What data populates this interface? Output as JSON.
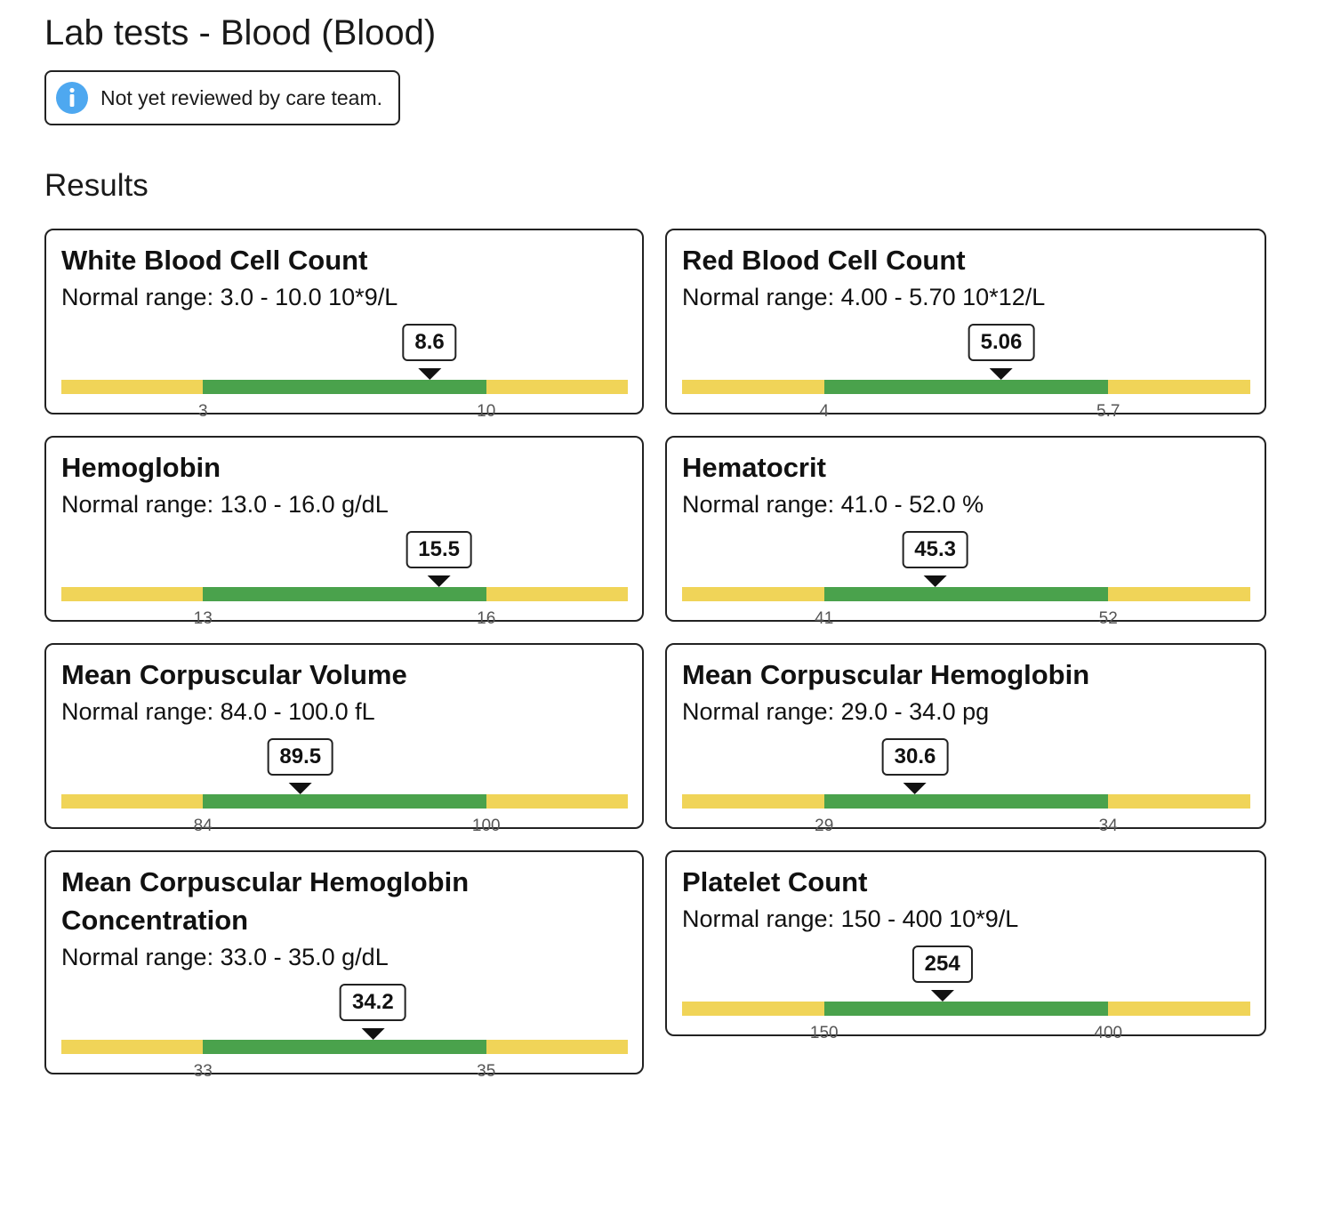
{
  "page": {
    "title": "Lab tests - Blood (Blood)",
    "notice": {
      "icon": "info-icon",
      "text": "Not yet reviewed by care team.",
      "icon_color": "#4ea8f0"
    },
    "section_title": "Results"
  },
  "colors": {
    "normal": "#4aa24c",
    "out_of_range": "#f0d458"
  },
  "results": [
    {
      "name": "White Blood Cell Count",
      "range_text": "Normal range: 3.0 - 10.0 10*9/L",
      "value": 8.6,
      "value_label": "8.6",
      "low": 3,
      "high": 10,
      "low_label": "3",
      "high_label": "10"
    },
    {
      "name": "Red Blood Cell Count",
      "range_text": "Normal range: 4.00 - 5.70 10*12/L",
      "value": 5.06,
      "value_label": "5.06",
      "low": 4,
      "high": 5.7,
      "low_label": "4",
      "high_label": "5.7"
    },
    {
      "name": "Hemoglobin",
      "range_text": "Normal range: 13.0 - 16.0 g/dL",
      "value": 15.5,
      "value_label": "15.5",
      "low": 13,
      "high": 16,
      "low_label": "13",
      "high_label": "16"
    },
    {
      "name": "Hematocrit",
      "range_text": "Normal range: 41.0 - 52.0 %",
      "value": 45.3,
      "value_label": "45.3",
      "low": 41,
      "high": 52,
      "low_label": "41",
      "high_label": "52"
    },
    {
      "name": "Mean Corpuscular Volume",
      "range_text": "Normal range: 84.0 - 100.0 fL",
      "value": 89.5,
      "value_label": "89.5",
      "low": 84,
      "high": 100,
      "low_label": "84",
      "high_label": "100"
    },
    {
      "name": "Mean Corpuscular Hemoglobin",
      "range_text": "Normal range: 29.0 - 34.0 pg",
      "value": 30.6,
      "value_label": "30.6",
      "low": 29,
      "high": 34,
      "low_label": "29",
      "high_label": "34"
    },
    {
      "name": "Mean Corpuscular Hemoglobin Concentration",
      "range_text": "Normal range: 33.0 - 35.0 g/dL",
      "value": 34.2,
      "value_label": "34.2",
      "low": 33,
      "high": 35,
      "low_label": "33",
      "high_label": "35"
    },
    {
      "name": "Platelet Count",
      "range_text": "Normal range: 150 - 400 10*9/L",
      "value": 254,
      "value_label": "254",
      "low": 150,
      "high": 400,
      "low_label": "150",
      "high_label": "400"
    }
  ]
}
